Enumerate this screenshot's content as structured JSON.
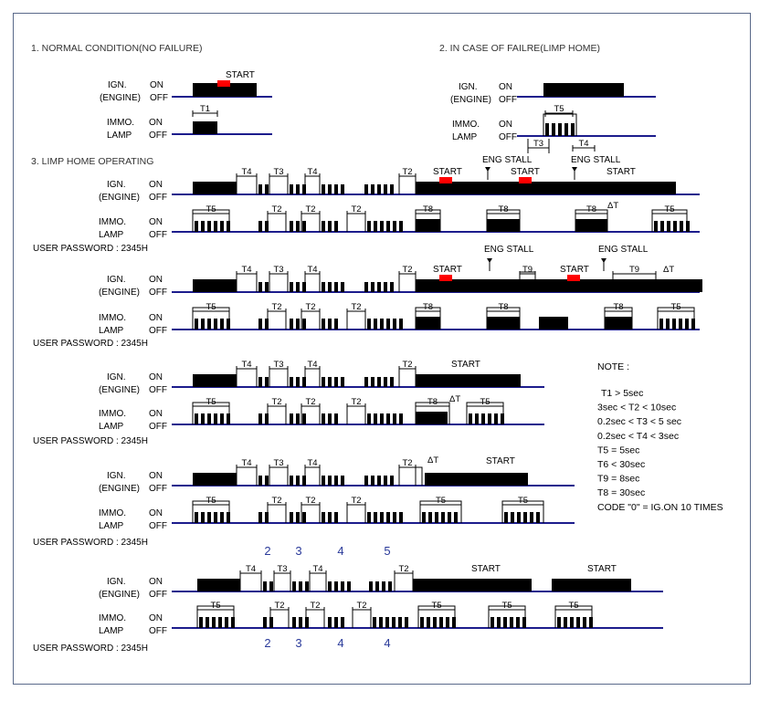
{
  "titles": {
    "normal": "1. NORMAL CONDITION(NO FAILURE)",
    "limp_home": "2. IN CASE OF FAILRE(LIMP HOME)",
    "operating": "3. LIMP HOME OPERATING"
  },
  "labels": {
    "ign": "IGN.",
    "engine": "(ENGINE)",
    "immo": "IMMO.",
    "lamp": "LAMP",
    "on": "ON",
    "off": "OFF",
    "start": "START",
    "eng_stall": "ENG STALL",
    "delta_t": "ΔT",
    "user_password": "USER PASSWORD : 2345H"
  },
  "timers": {
    "t1": "T1",
    "t2": "T2",
    "t3": "T3",
    "t4": "T4",
    "t5": "T5",
    "t8": "T8",
    "t9": "T9"
  },
  "note": {
    "title": "NOTE :",
    "lines": [
      "T1 > 5sec",
      "3sec < T2 < 10sec",
      "0.2sec < T3 < 5 sec",
      "0.2sec < T4 < 3sec",
      "T5 = 5sec",
      "T6 < 30sec",
      "T9 = 8sec",
      "T8 = 30sec",
      "CODE \"0\" = IG.ON 10 TIMES"
    ]
  },
  "digits_top": [
    "2",
    "3",
    "4",
    "5"
  ],
  "digits_bottom": [
    "2",
    "3",
    "4",
    "4"
  ],
  "colors": {
    "baseline": "#1c1c8c",
    "start_marker": "#ff0000",
    "signal": "#000000",
    "digits": "#2a3a9a"
  }
}
